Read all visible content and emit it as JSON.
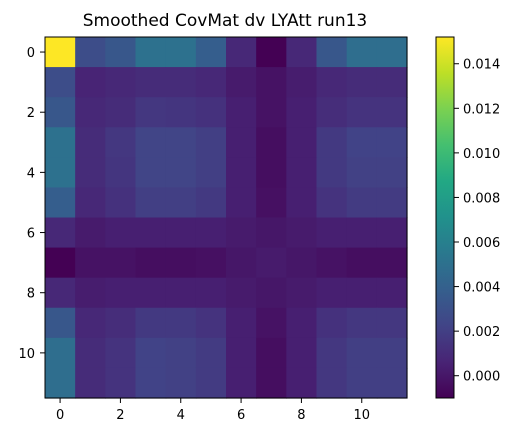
{
  "chart_data": {
    "type": "heatmap",
    "title": "Smoothed CovMat dv LYAtt run13",
    "xlabel": "",
    "ylabel": "",
    "x_ticks": [
      "0",
      "2",
      "4",
      "6",
      "8",
      "10"
    ],
    "y_ticks": [
      "0",
      "2",
      "4",
      "6",
      "8",
      "10"
    ],
    "x_tick_values": [
      0,
      2,
      4,
      6,
      8,
      10
    ],
    "y_tick_values": [
      0,
      2,
      4,
      6,
      8,
      10
    ],
    "colormap": "viridis",
    "color_range": [
      -0.001,
      0.0152
    ],
    "colorbar_ticks": [
      "0.000",
      "0.002",
      "0.004",
      "0.006",
      "0.008",
      "0.010",
      "0.012",
      "0.014"
    ],
    "colorbar_tick_values": [
      0.0,
      0.002,
      0.004,
      0.006,
      0.008,
      0.01,
      0.012,
      0.014
    ],
    "matrix": [
      [
        0.0152,
        0.0028,
        0.0034,
        0.005,
        0.005,
        0.0038,
        0.0008,
        -0.001,
        0.0008,
        0.0034,
        0.0048,
        0.0048
      ],
      [
        0.0028,
        0.0006,
        0.0008,
        0.001,
        0.001,
        0.0008,
        0.0002,
        -0.0002,
        0.0003,
        0.0008,
        0.001,
        0.001
      ],
      [
        0.0034,
        0.0008,
        0.001,
        0.0016,
        0.0015,
        0.0013,
        0.0004,
        -0.0002,
        0.0004,
        0.0011,
        0.0014,
        0.0014
      ],
      [
        0.005,
        0.001,
        0.0016,
        0.0023,
        0.0023,
        0.002,
        0.0004,
        -0.0004,
        0.0004,
        0.0017,
        0.0022,
        0.0022
      ],
      [
        0.005,
        0.001,
        0.0015,
        0.0023,
        0.0023,
        0.002,
        0.0004,
        -0.0004,
        0.0004,
        0.0017,
        0.0021,
        0.0021
      ],
      [
        0.0038,
        0.0008,
        0.0013,
        0.002,
        0.002,
        0.0017,
        0.0004,
        -0.0003,
        0.0004,
        0.0014,
        0.0018,
        0.0018
      ],
      [
        0.0008,
        0.0002,
        0.0004,
        0.0004,
        0.0004,
        0.0004,
        0.0002,
        0.0,
        0.0002,
        0.0004,
        0.0004,
        0.0004
      ],
      [
        -0.001,
        -0.0002,
        -0.0002,
        -0.0004,
        -0.0004,
        -0.0003,
        0.0,
        0.0002,
        0.0,
        -0.0002,
        -0.0004,
        -0.0004
      ],
      [
        0.0008,
        0.0003,
        0.0004,
        0.0004,
        0.0004,
        0.0004,
        0.0002,
        0.0,
        0.0002,
        0.0004,
        0.0004,
        0.0004
      ],
      [
        0.0034,
        0.0008,
        0.0011,
        0.0017,
        0.0017,
        0.0014,
        0.0004,
        -0.0002,
        0.0004,
        0.0013,
        0.0016,
        0.0016
      ],
      [
        0.0048,
        0.001,
        0.0014,
        0.0022,
        0.0021,
        0.0018,
        0.0004,
        -0.0004,
        0.0004,
        0.0016,
        0.002,
        0.002
      ],
      [
        0.0048,
        0.001,
        0.0014,
        0.0022,
        0.0021,
        0.0018,
        0.0004,
        -0.0004,
        0.0004,
        0.0016,
        0.002,
        0.002
      ]
    ]
  }
}
